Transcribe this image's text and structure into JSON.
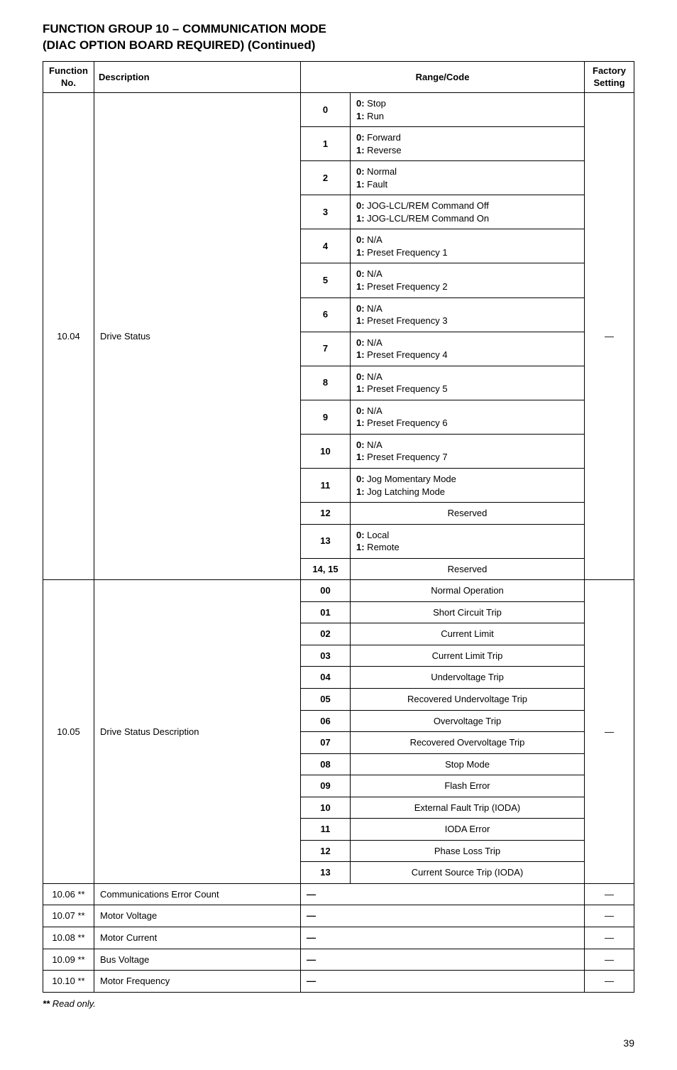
{
  "heading_line1": "FUNCTION GROUP 10 – COMMUNICATION MODE",
  "heading_line2": "(DIAC OPTION BOARD REQUIRED) (Continued)",
  "columns": {
    "fn_no_top": "Function",
    "fn_no_bot": "No.",
    "description": "Description",
    "range_code": "Range/Code",
    "factory_top": "Factory",
    "factory_bot": "Setting"
  },
  "group1": {
    "fn_no": "10.04",
    "description": "Drive Status",
    "factory": "—",
    "rows": [
      {
        "code": "0",
        "pairs": [
          [
            "0:",
            "Stop"
          ],
          [
            "1:",
            "Run"
          ]
        ]
      },
      {
        "code": "1",
        "pairs": [
          [
            "0:",
            "Forward"
          ],
          [
            "1:",
            "Reverse"
          ]
        ]
      },
      {
        "code": "2",
        "pairs": [
          [
            "0:",
            "Normal"
          ],
          [
            "1:",
            "Fault"
          ]
        ]
      },
      {
        "code": "3",
        "pairs": [
          [
            "0:",
            "JOG-LCL/REM Command Off"
          ],
          [
            "1:",
            "JOG-LCL/REM Command On"
          ]
        ]
      },
      {
        "code": "4",
        "pairs": [
          [
            "0:",
            "N/A"
          ],
          [
            "1:",
            "Preset Frequency 1"
          ]
        ]
      },
      {
        "code": "5",
        "pairs": [
          [
            "0:",
            "N/A"
          ],
          [
            "1:",
            "Preset Frequency 2"
          ]
        ]
      },
      {
        "code": "6",
        "pairs": [
          [
            "0:",
            "N/A"
          ],
          [
            "1:",
            "Preset Frequency 3"
          ]
        ]
      },
      {
        "code": "7",
        "pairs": [
          [
            "0:",
            "N/A"
          ],
          [
            "1:",
            "Preset Frequency 4"
          ]
        ]
      },
      {
        "code": "8",
        "pairs": [
          [
            "0:",
            "N/A"
          ],
          [
            "1:",
            "Preset Frequency 5"
          ]
        ]
      },
      {
        "code": "9",
        "pairs": [
          [
            "0:",
            "N/A"
          ],
          [
            "1:",
            "Preset Frequency 6"
          ]
        ]
      },
      {
        "code": "10",
        "pairs": [
          [
            "0:",
            "N/A"
          ],
          [
            "1:",
            "Preset Frequency 7"
          ]
        ]
      },
      {
        "code": "11",
        "pairs": [
          [
            "0:",
            "Jog Momentary Mode"
          ],
          [
            "1:",
            "Jog Latching Mode"
          ]
        ]
      },
      {
        "code": "12",
        "single": "Reserved"
      },
      {
        "code": "13",
        "pairs": [
          [
            "0:",
            "Local"
          ],
          [
            "1:",
            "Remote"
          ]
        ]
      },
      {
        "code": "14, 15",
        "single": "Reserved"
      }
    ]
  },
  "group2": {
    "fn_no": "10.05",
    "description": "Drive Status Description",
    "factory": "—",
    "rows": [
      {
        "code": "00",
        "single": "Normal Operation"
      },
      {
        "code": "01",
        "single": "Short Circuit Trip"
      },
      {
        "code": "02",
        "single": "Current Limit"
      },
      {
        "code": "03",
        "single": "Current Limit Trip"
      },
      {
        "code": "04",
        "single": "Undervoltage Trip"
      },
      {
        "code": "05",
        "single": "Recovered Undervoltage Trip"
      },
      {
        "code": "06",
        "single": "Overvoltage Trip"
      },
      {
        "code": "07",
        "single": "Recovered Overvoltage Trip"
      },
      {
        "code": "08",
        "single": "Stop Mode"
      },
      {
        "code": "09",
        "single": "Flash Error"
      },
      {
        "code": "10",
        "single": "External Fault Trip (IODA)"
      },
      {
        "code": "11",
        "single": "IODA Error"
      },
      {
        "code": "12",
        "single": "Phase Loss Trip"
      },
      {
        "code": "13",
        "single": "Current Source Trip (IODA)"
      }
    ]
  },
  "simple_rows": [
    {
      "fn_no": "10.06 **",
      "description": "Communications Error Count",
      "range": "—",
      "factory": "—"
    },
    {
      "fn_no": "10.07 **",
      "description": "Motor Voltage",
      "range": "—",
      "factory": "—"
    },
    {
      "fn_no": "10.08 **",
      "description": "Motor Current",
      "range": "—",
      "factory": "—"
    },
    {
      "fn_no": "10.09 **",
      "description": "Bus Voltage",
      "range": "—",
      "factory": "—"
    },
    {
      "fn_no": "10.10 **",
      "description": "Motor Frequency",
      "range": "—",
      "factory": "—"
    }
  ],
  "footnote_marker": "**",
  "footnote_text": " Read only.",
  "page_number": "39"
}
